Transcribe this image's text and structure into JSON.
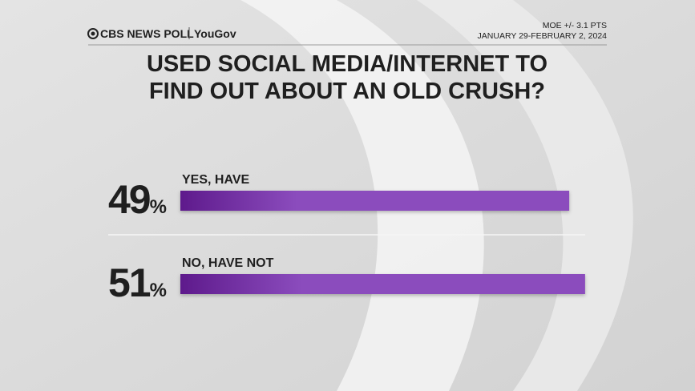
{
  "header": {
    "brand": "CBS NEWS POLL",
    "partner": "YouGov",
    "moe": "MOE +/- 3.1 PTS",
    "dates": "JANUARY 29-FEBRUARY 2, 2024"
  },
  "chart_data": {
    "type": "bar",
    "orientation": "horizontal",
    "title": [
      "USED SOCIAL MEDIA/INTERNET TO",
      "FIND OUT ABOUT AN OLD CRUSH?"
    ],
    "categories": [
      "YES, HAVE",
      "NO, HAVE NOT"
    ],
    "values": [
      49,
      51
    ],
    "value_labels": [
      "49%",
      "51%"
    ],
    "color": "#8b4cbd"
  }
}
